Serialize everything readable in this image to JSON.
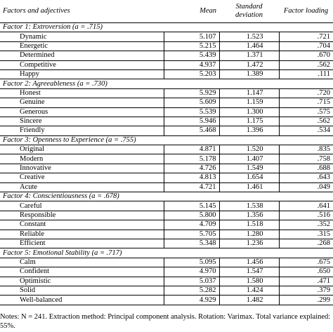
{
  "header": {
    "col1": "Factors and adjectives",
    "col2": "Mean",
    "col3_line1": "Standard",
    "col3_line2": "deviation",
    "col4": "Factor loading"
  },
  "factors": [
    {
      "label_prefix": "Factor 1: Extroversion (",
      "alpha_symbol": "a",
      "label_suffix": " = .715)",
      "items": [
        {
          "name": "Dynamic",
          "mean": "5.107",
          "sd": "1.523",
          "loading": ".721"
        },
        {
          "name": "Energetic",
          "mean": "5.215",
          "sd": "1.464",
          "loading": ".704"
        },
        {
          "name": "Determined",
          "mean": "5.439",
          "sd": "1.371",
          "loading": ".670"
        },
        {
          "name": "Competitive",
          "mean": "4.937",
          "sd": "1.472",
          "loading": ".562"
        },
        {
          "name": "Happy",
          "mean": "5.203",
          "sd": "1.389",
          "loading": ".111"
        }
      ]
    },
    {
      "label_prefix": "Factor 2: Agreeableness (",
      "alpha_symbol": "a",
      "label_suffix": " = .730)",
      "items": [
        {
          "name": "Honest",
          "mean": "5.929",
          "sd": "1.147",
          "loading": ".720"
        },
        {
          "name": "Genuine",
          "mean": "5.609",
          "sd": "1.159",
          "loading": ".715"
        },
        {
          "name": "Generous",
          "mean": "5.539",
          "sd": "1.300",
          "loading": ".575"
        },
        {
          "name": "Sincere",
          "mean": "5.946",
          "sd": "1.175",
          "loading": ".562"
        },
        {
          "name": "Friendly",
          "mean": "5.468",
          "sd": "1.396",
          "loading": ".534"
        }
      ]
    },
    {
      "label_prefix": "Factor 3: Openness to Experience (",
      "alpha_symbol": "a",
      "label_suffix": " = .755)",
      "items": [
        {
          "name": "Original",
          "mean": "4.871",
          "sd": "1.520",
          "loading": ".835"
        },
        {
          "name": "Modern",
          "mean": "5.178",
          "sd": "1.407",
          "loading": ".758"
        },
        {
          "name": "Innovative",
          "mean": "4.726",
          "sd": "1.549",
          "loading": ".688"
        },
        {
          "name": "Creative",
          "mean": "4.813",
          "sd": "1.654",
          "loading": ".643"
        },
        {
          "name": "Acute",
          "mean": "4.721",
          "sd": "1.461",
          "loading": ".049"
        }
      ]
    },
    {
      "label_prefix": "Factor 4: Conscientiousness (",
      "alpha_symbol": "a",
      "label_suffix": " = .678)",
      "items": [
        {
          "name": "Careful",
          "mean": "5.145",
          "sd": "1.538",
          "loading": ".641"
        },
        {
          "name": "Responsible",
          "mean": "5.800",
          "sd": "1.356",
          "loading": ".516"
        },
        {
          "name": "Constant",
          "mean": "4.709",
          "sd": "1.518",
          "loading": ".352"
        },
        {
          "name": "Reliable",
          "mean": "5.705",
          "sd": "1.280",
          "loading": ".315"
        },
        {
          "name": "Efficient",
          "mean": "5.348",
          "sd": "1.236",
          "loading": ".268"
        }
      ]
    },
    {
      "label_prefix": "Factor 5: Emotional Stability (",
      "alpha_symbol": "a",
      "label_suffix": " = .717)",
      "items": [
        {
          "name": "Calm",
          "mean": "5.095",
          "sd": "1.456",
          "loading": ".675"
        },
        {
          "name": "Confident",
          "mean": "4.970",
          "sd": "1.547",
          "loading": ".650"
        },
        {
          "name": "Optimistic",
          "mean": "5.037",
          "sd": "1.580",
          "loading": ".471"
        },
        {
          "name": "Solid",
          "mean": "5.282",
          "sd": "1.424",
          "loading": ".379"
        },
        {
          "name": "Well-balanced",
          "mean": "4.929",
          "sd": "1.482",
          "loading": ".299"
        }
      ]
    }
  ],
  "notes": "Notes: N = 241. Extraction method: Principal component analysis. Rotation: Varimax. Total variance explained: 55%."
}
